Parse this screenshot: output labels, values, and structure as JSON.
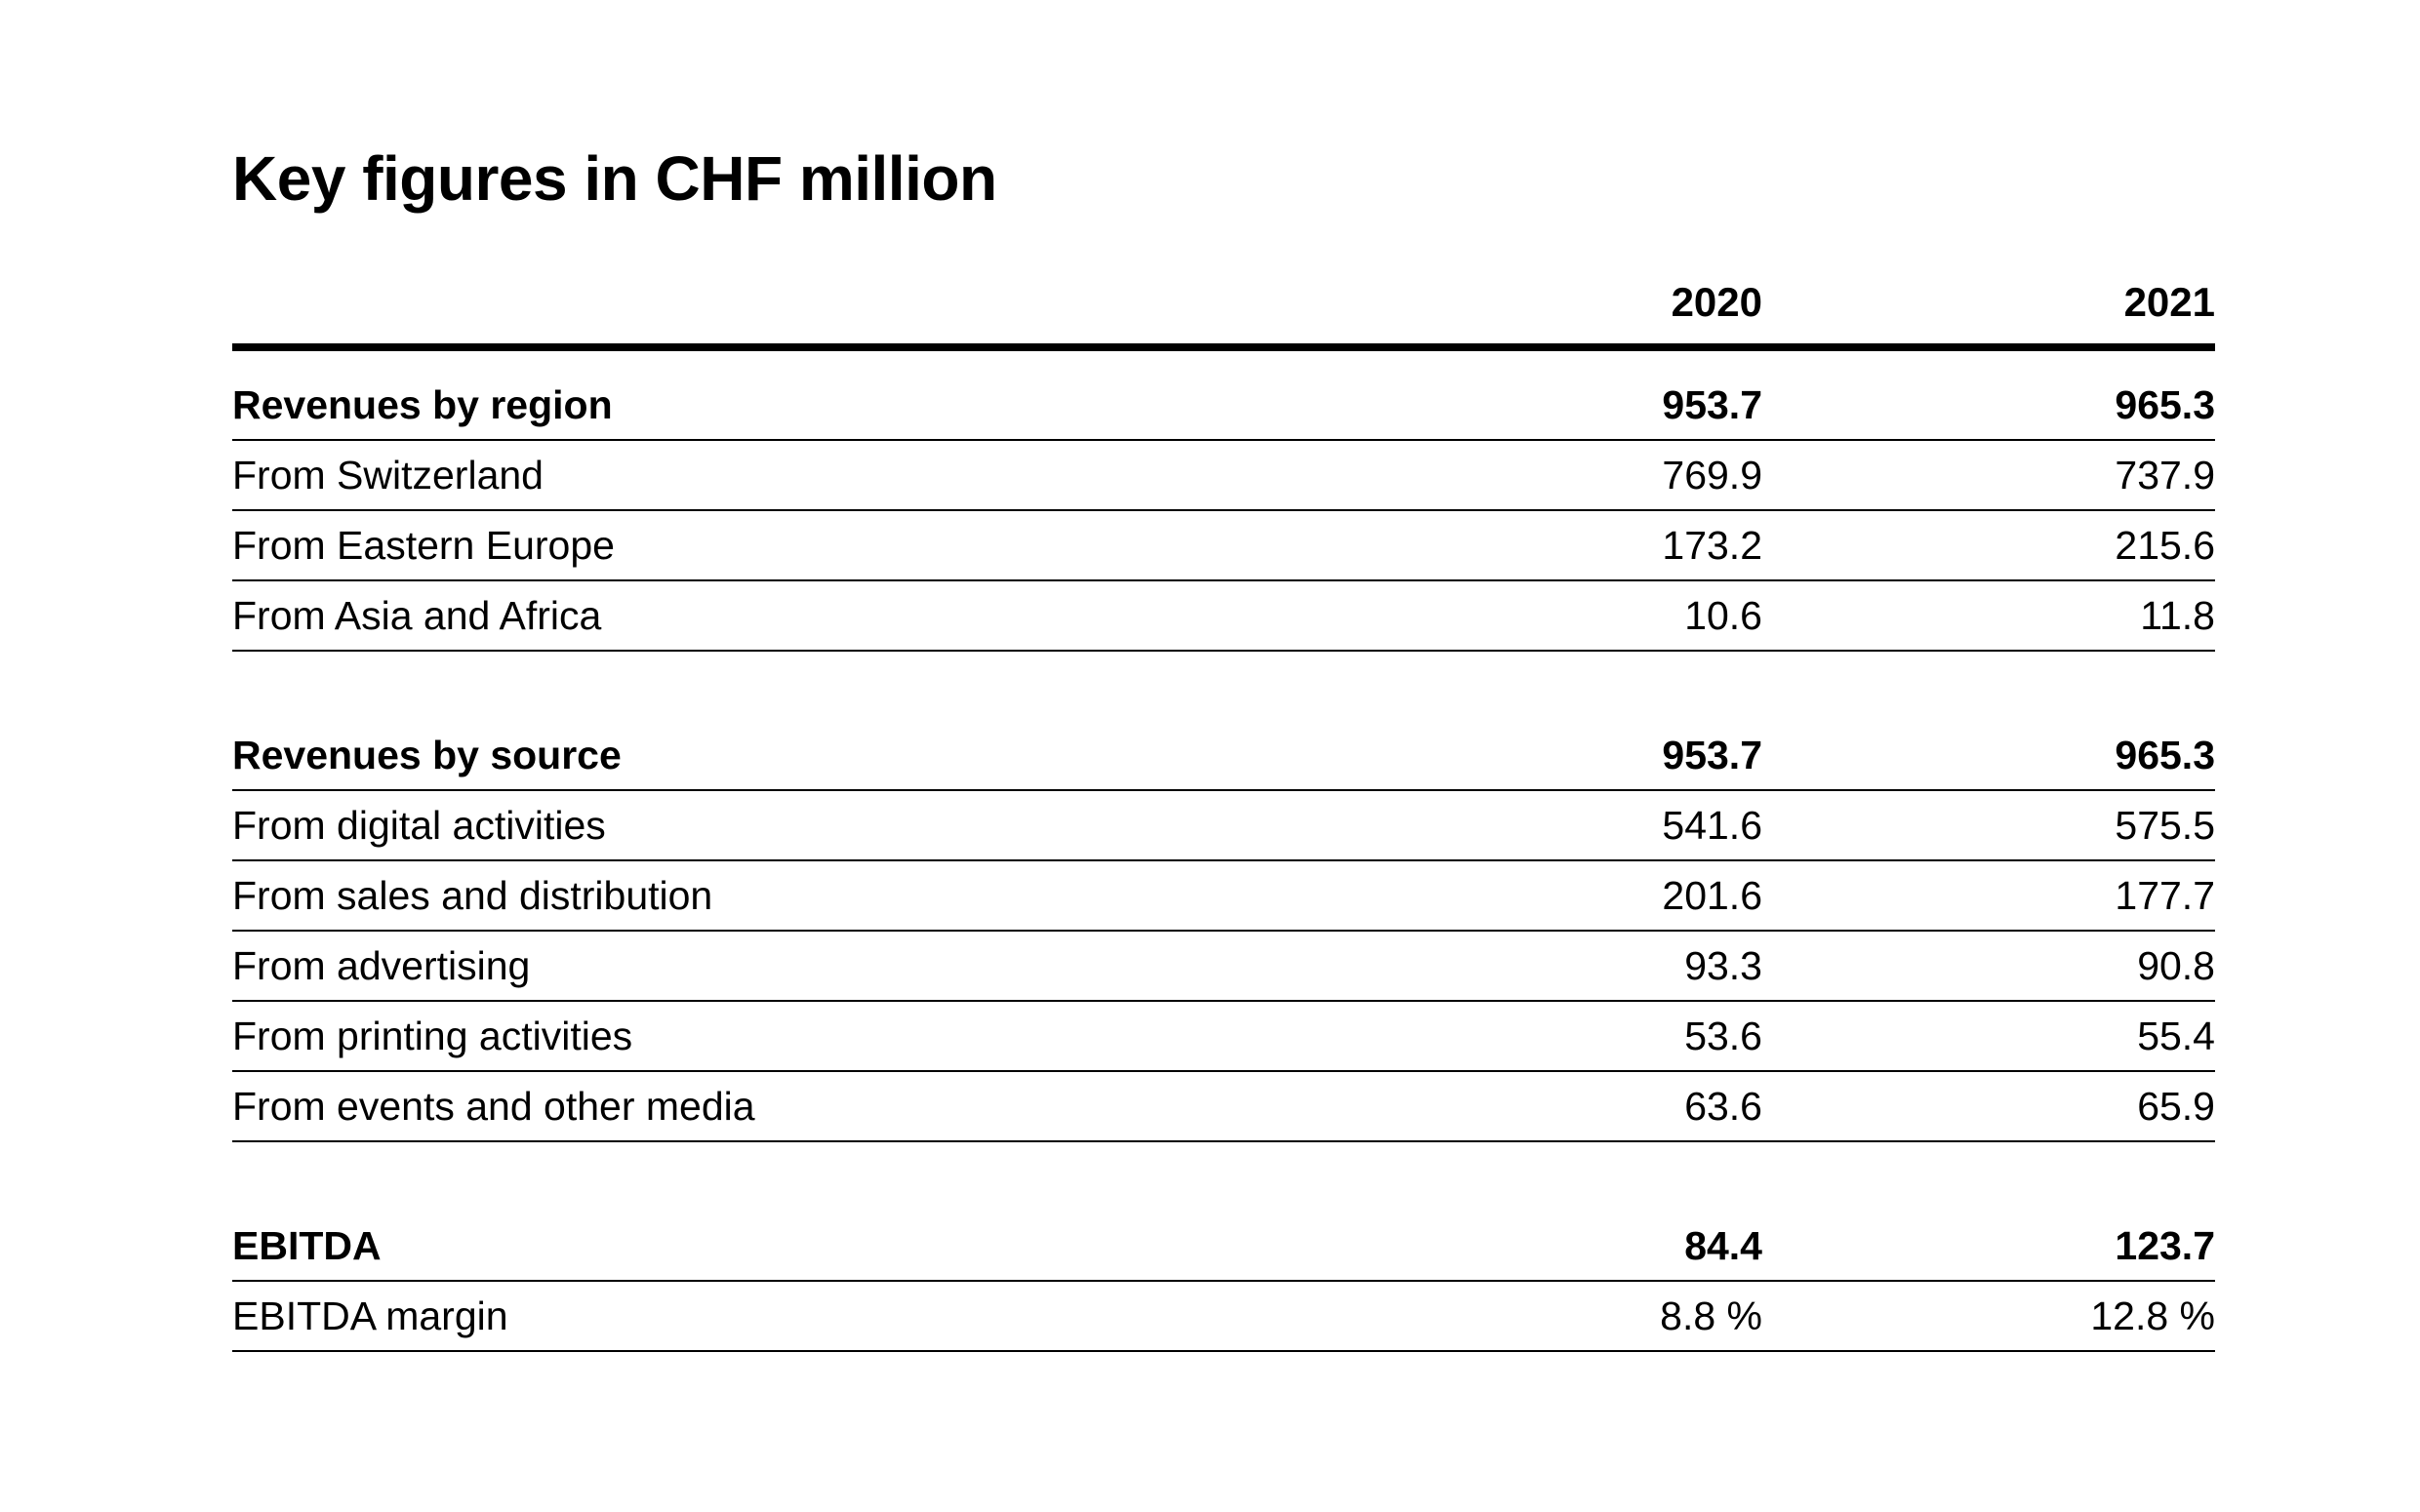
{
  "title": "Key figures in CHF million",
  "columns": [
    "2020",
    "2021"
  ],
  "sections": [
    {
      "rows": [
        {
          "label": "Revenues by region",
          "values": [
            "953.7",
            "965.3"
          ],
          "total": true
        },
        {
          "label": "From Switzerland",
          "values": [
            "769.9",
            "737.9"
          ],
          "total": false
        },
        {
          "label": "From Eastern Europe",
          "values": [
            "173.2",
            "215.6"
          ],
          "total": false
        },
        {
          "label": "From Asia and Africa",
          "values": [
            "10.6",
            "11.8"
          ],
          "total": false
        }
      ]
    },
    {
      "rows": [
        {
          "label": "Revenues by source",
          "values": [
            "953.7",
            "965.3"
          ],
          "total": true
        },
        {
          "label": "From digital activities",
          "values": [
            "541.6",
            "575.5"
          ],
          "total": false
        },
        {
          "label": "From sales and distribution",
          "values": [
            "201.6",
            "177.7"
          ],
          "total": false
        },
        {
          "label": "From advertising",
          "values": [
            "93.3",
            "90.8"
          ],
          "total": false
        },
        {
          "label": "From printing activities",
          "values": [
            "53.6",
            "55.4"
          ],
          "total": false
        },
        {
          "label": "From events and other media",
          "values": [
            "63.6",
            "65.9"
          ],
          "total": false
        }
      ]
    },
    {
      "rows": [
        {
          "label": "EBITDA",
          "values": [
            "84.4",
            "123.7"
          ],
          "total": true
        },
        {
          "label": "EBITDA margin",
          "values": [
            "8.8 %",
            "12.8 %"
          ],
          "total": false
        }
      ]
    }
  ]
}
